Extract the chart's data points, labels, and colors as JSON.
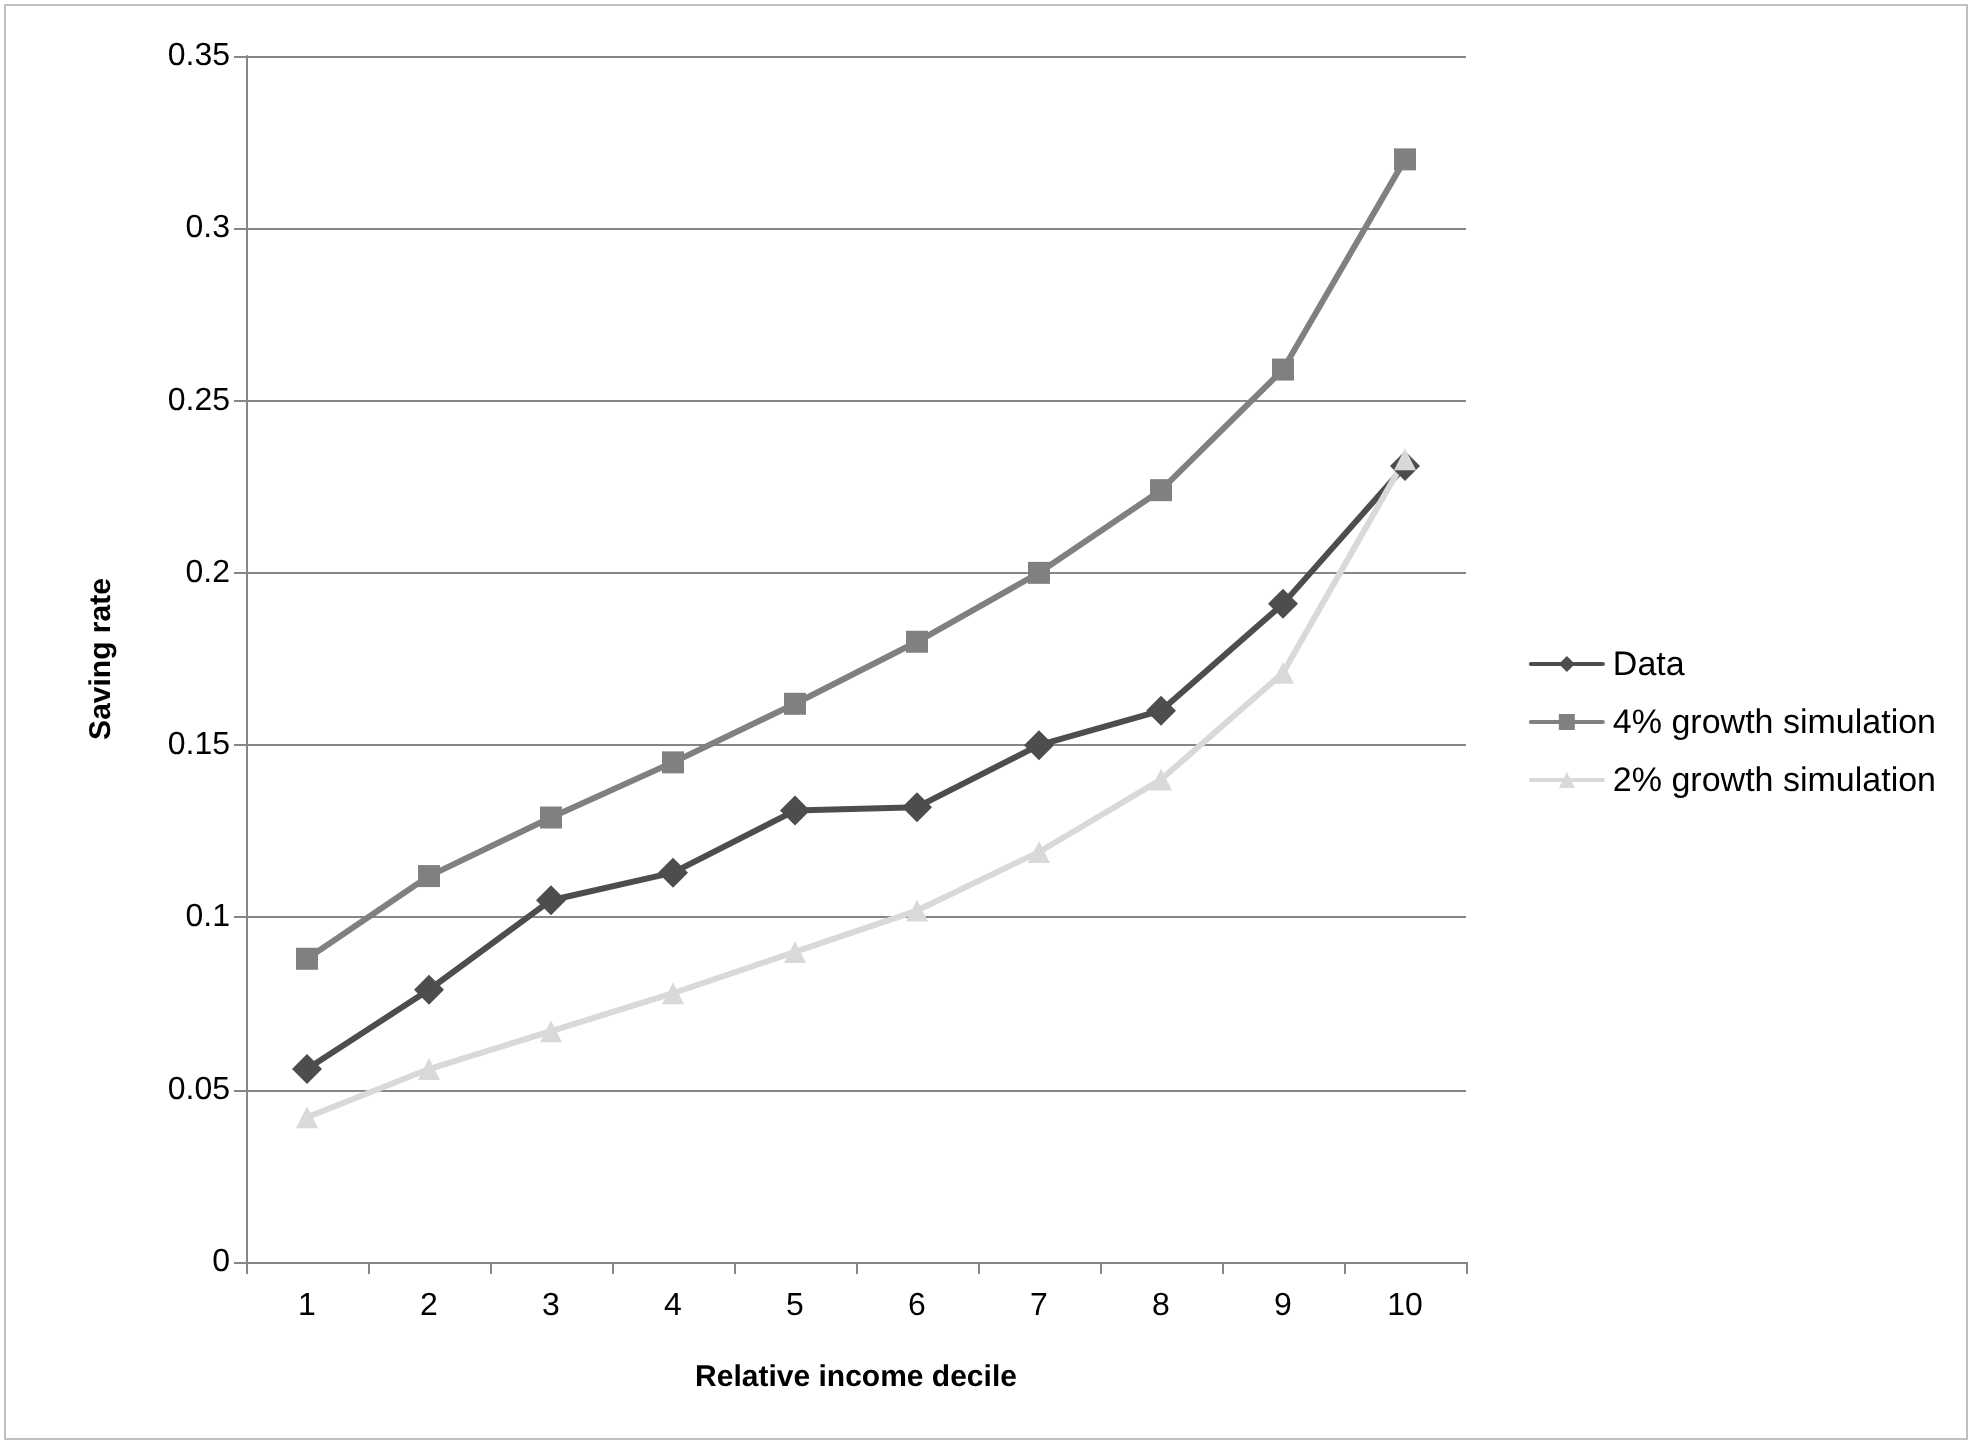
{
  "chart_data": {
    "type": "line",
    "xlabel": "Relative income decile",
    "ylabel": "Saving rate",
    "categories": [
      "1",
      "2",
      "3",
      "4",
      "5",
      "6",
      "7",
      "8",
      "9",
      "10"
    ],
    "series": [
      {
        "name": "Data",
        "color": "#4d4d4d",
        "marker": "diamond",
        "values": [
          0.056,
          0.079,
          0.105,
          0.113,
          0.131,
          0.132,
          0.15,
          0.16,
          0.191,
          0.231
        ]
      },
      {
        "name": "4% growth simulation",
        "color": "#808080",
        "marker": "square",
        "values": [
          0.088,
          0.112,
          0.129,
          0.145,
          0.162,
          0.18,
          0.2,
          0.224,
          0.259,
          0.32
        ]
      },
      {
        "name": "2% growth simulation",
        "color": "#d9d9d9",
        "marker": "triangle",
        "values": [
          0.042,
          0.056,
          0.067,
          0.078,
          0.09,
          0.102,
          0.119,
          0.14,
          0.171,
          0.233
        ]
      }
    ],
    "ylim": [
      0,
      0.35
    ],
    "yticks": [
      0,
      0.05,
      0.1,
      0.15,
      0.2,
      0.25,
      0.3,
      0.35
    ],
    "grid": "y",
    "legend": "right"
  }
}
